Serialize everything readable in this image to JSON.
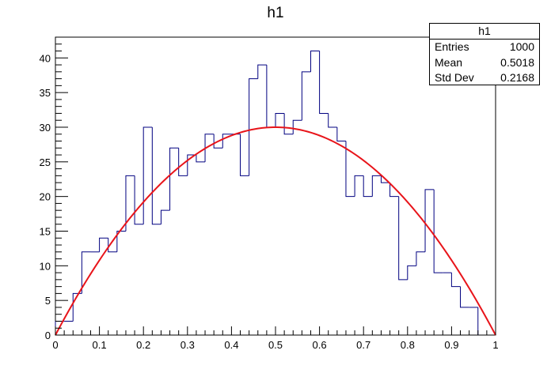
{
  "chart_data": {
    "type": "histogram",
    "title": "h1",
    "xlabel": "",
    "ylabel": "",
    "xlim": [
      0,
      1
    ],
    "ylim": [
      0,
      43
    ],
    "bin_width": 0.02,
    "x_ticks": [
      "0",
      "0.1",
      "0.2",
      "0.3",
      "0.4",
      "0.5",
      "0.6",
      "0.7",
      "0.8",
      "0.9",
      "1"
    ],
    "y_ticks": [
      "0",
      "5",
      "10",
      "15",
      "20",
      "25",
      "30",
      "35",
      "40"
    ],
    "bin_counts": [
      2,
      2,
      6,
      12,
      12,
      14,
      12,
      15,
      23,
      16,
      30,
      16,
      18,
      27,
      23,
      26,
      25,
      29,
      27,
      29,
      29,
      23,
      37,
      39,
      30,
      32,
      29,
      31,
      38,
      41,
      32,
      30,
      28,
      20,
      23,
      20,
      23,
      22,
      20,
      8,
      10,
      12,
      21,
      9,
      9,
      7,
      4,
      4
    ],
    "fit": {
      "type": "parabola",
      "formula": "y = 120 * x * (1 - x)",
      "color": "#e8141a"
    },
    "histogram_color": "#000080",
    "grid": false,
    "legend": "top-right"
  },
  "stats_box": {
    "title": "h1",
    "rows": [
      {
        "label": "Entries",
        "value": "1000"
      },
      {
        "label": "Mean",
        "value": "0.5018"
      },
      {
        "label": "Std Dev",
        "value": "0.2168"
      }
    ]
  }
}
